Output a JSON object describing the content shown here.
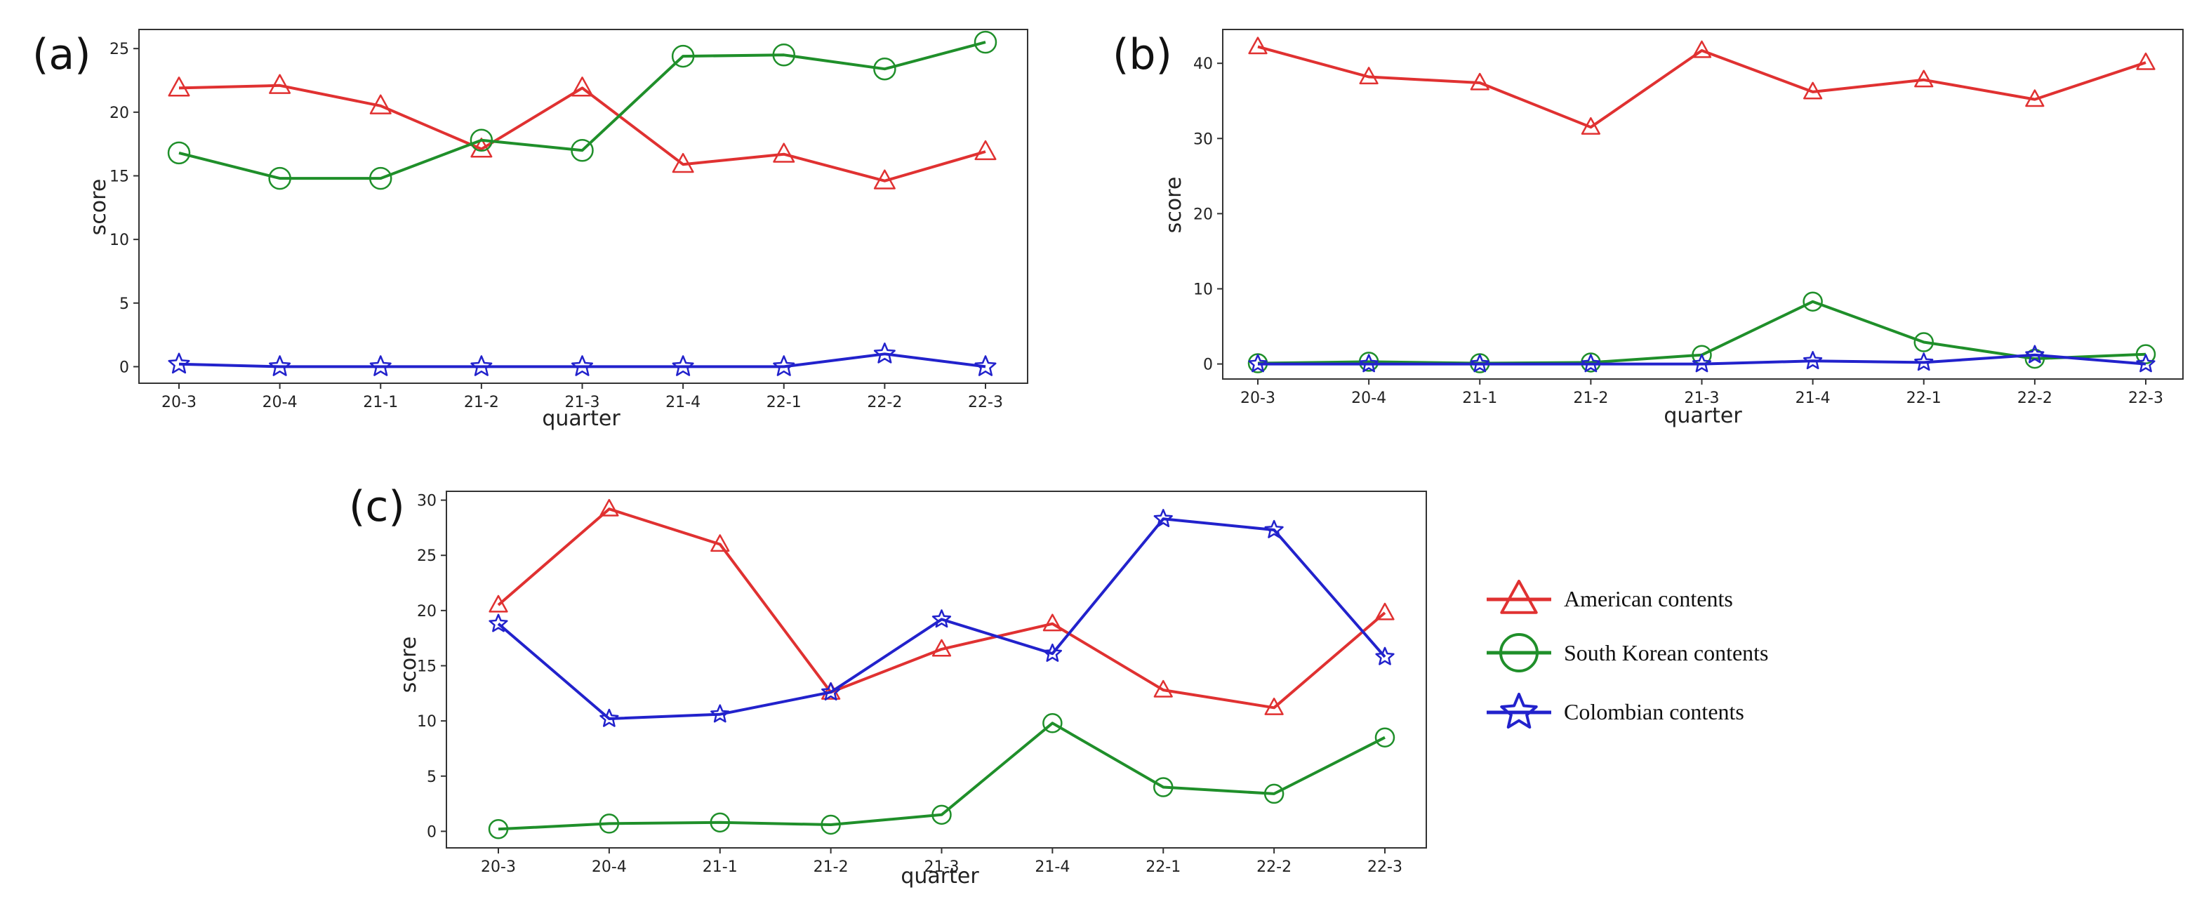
{
  "legend": {
    "entries": [
      {
        "name": "American contents",
        "color": "#e03131",
        "marker": "triangle"
      },
      {
        "name": "South Korean contents",
        "color": "#1f8f2a",
        "marker": "circle"
      },
      {
        "name": "Colombian contents",
        "color": "#2222cc",
        "marker": "star"
      }
    ]
  },
  "chart_data": [
    {
      "panel_label": "(a)",
      "type": "line",
      "categories": [
        "20-3",
        "20-4",
        "21-1",
        "21-2",
        "21-3",
        "21-4",
        "22-1",
        "22-2",
        "22-3"
      ],
      "xlabel": "quarter",
      "ylabel": "score",
      "ylim": [
        -1.3,
        26.5
      ],
      "yticks": [
        0,
        5,
        10,
        15,
        20,
        25
      ],
      "series": [
        {
          "name": "American contents",
          "color": "#e03131",
          "marker": "triangle",
          "values": [
            21.9,
            22.1,
            20.5,
            17.1,
            21.9,
            15.9,
            16.7,
            14.6,
            16.9
          ]
        },
        {
          "name": "South Korean contents",
          "color": "#1f8f2a",
          "marker": "circle",
          "values": [
            16.8,
            14.8,
            14.8,
            17.8,
            17.0,
            24.4,
            24.5,
            23.4,
            25.5
          ]
        },
        {
          "name": "Colombian contents",
          "color": "#2222cc",
          "marker": "star",
          "values": [
            0.2,
            0.0,
            0.0,
            0.0,
            0.0,
            0.0,
            0.0,
            1.0,
            0.0
          ]
        }
      ]
    },
    {
      "panel_label": "(b)",
      "type": "line",
      "categories": [
        "20-3",
        "20-4",
        "21-1",
        "21-2",
        "21-3",
        "21-4",
        "22-1",
        "22-2",
        "22-3"
      ],
      "xlabel": "quarter",
      "ylabel": "score",
      "ylim": [
        -2.0,
        44.5
      ],
      "yticks": [
        0,
        10,
        20,
        30,
        40
      ],
      "series": [
        {
          "name": "American contents",
          "color": "#e03131",
          "marker": "triangle",
          "values": [
            42.2,
            38.2,
            37.4,
            31.5,
            41.7,
            36.2,
            37.8,
            35.2,
            40.1
          ]
        },
        {
          "name": "South Korean contents",
          "color": "#1f8f2a",
          "marker": "circle",
          "values": [
            0.1,
            0.3,
            0.1,
            0.2,
            1.2,
            8.3,
            2.9,
            0.7,
            1.3
          ]
        },
        {
          "name": "Colombian contents",
          "color": "#2222cc",
          "marker": "star",
          "values": [
            0.0,
            0.0,
            0.0,
            0.0,
            0.0,
            0.4,
            0.2,
            1.2,
            0.0
          ]
        }
      ]
    },
    {
      "panel_label": "(c)",
      "type": "line",
      "categories": [
        "20-3",
        "20-4",
        "21-1",
        "21-2",
        "21-3",
        "21-4",
        "22-1",
        "22-2",
        "22-3"
      ],
      "xlabel": "quarter",
      "ylabel": "score",
      "ylim": [
        -1.5,
        30.8
      ],
      "yticks": [
        0,
        5,
        10,
        15,
        20,
        25,
        30
      ],
      "series": [
        {
          "name": "American contents",
          "color": "#e03131",
          "marker": "triangle",
          "values": [
            20.5,
            29.2,
            26.0,
            12.6,
            16.5,
            18.8,
            12.8,
            11.2,
            19.8
          ]
        },
        {
          "name": "South Korean contents",
          "color": "#1f8f2a",
          "marker": "circle",
          "values": [
            0.2,
            0.7,
            0.8,
            0.6,
            1.5,
            9.8,
            4.0,
            3.4,
            8.5
          ]
        },
        {
          "name": "Colombian contents",
          "color": "#2222cc",
          "marker": "star",
          "values": [
            18.8,
            10.2,
            10.6,
            12.6,
            19.2,
            16.1,
            28.3,
            27.3,
            15.8
          ]
        }
      ]
    }
  ]
}
